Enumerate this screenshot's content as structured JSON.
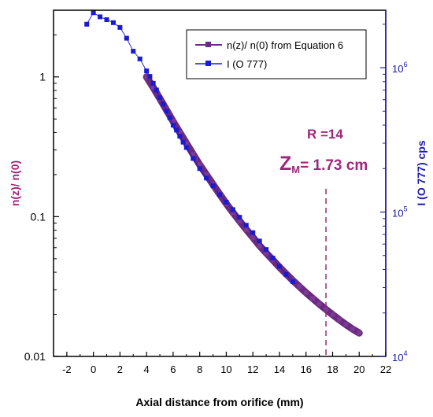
{
  "chart_data": {
    "type": "line",
    "xlabel": "Axial distance from orifice (mm)",
    "ylabel_left": "n(z)/ n(0)",
    "ylabel_right": "I (O 777)  cps",
    "xlim": [
      -3,
      22
    ],
    "ylim_left": [
      0.01,
      3
    ],
    "ylim_right": [
      10000,
      2500000
    ],
    "yscale": "log",
    "x_ticks": [
      -2,
      0,
      2,
      4,
      6,
      8,
      10,
      12,
      14,
      16,
      18,
      20,
      22
    ],
    "x_tick_labels": [
      "-2",
      "0",
      "2",
      "4",
      "6",
      "8",
      "10",
      "12",
      "14",
      "16",
      "18",
      "20",
      "22"
    ],
    "y_left_ticks": [
      0.01,
      0.1,
      1
    ],
    "y_left_tick_labels": [
      "0.01",
      "0.1",
      "1"
    ],
    "y_right_ticks": [
      10000,
      100000,
      1000000
    ],
    "y_right_tick_labels": [
      {
        "base": "10",
        "exp": "4"
      },
      {
        "base": "10",
        "exp": "5"
      },
      {
        "base": "10",
        "exp": "6"
      }
    ],
    "legend_position": "top-right",
    "series": [
      {
        "name": "n(z)/ n(0) from Equation 6",
        "color": "#6a2a80",
        "axis": "left",
        "x": [
          4.0,
          4.5,
          5.0,
          5.5,
          6.0,
          6.5,
          7.0,
          7.5,
          8.0,
          8.5,
          9.0,
          9.5,
          10.0,
          10.5,
          11.0,
          11.5,
          12.0,
          12.5,
          13.0,
          13.5,
          14.0,
          14.5,
          15.0,
          15.5,
          16.0,
          16.5,
          17.0,
          17.5,
          18.0,
          18.5,
          19.0,
          19.5,
          20.0
        ],
        "y": [
          1.0,
          0.84,
          0.7,
          0.58,
          0.48,
          0.4,
          0.335,
          0.28,
          0.235,
          0.2,
          0.17,
          0.145,
          0.124,
          0.107,
          0.093,
          0.081,
          0.071,
          0.062,
          0.055,
          0.049,
          0.0435,
          0.039,
          0.035,
          0.0316,
          0.0286,
          0.026,
          0.0237,
          0.0217,
          0.0199,
          0.0183,
          0.0169,
          0.0157,
          0.0147
        ]
      },
      {
        "name": "I (O 777)",
        "color": "#1a1ad0",
        "axis": "right",
        "x": [
          -0.5,
          0.0,
          0.5,
          1.0,
          1.5,
          2.0,
          2.5,
          3.0,
          3.5,
          4.0,
          4.25,
          4.5,
          4.75,
          5.0,
          5.25,
          5.5,
          5.75,
          6.0,
          6.25,
          6.5,
          6.75,
          7.0,
          7.5,
          8.0,
          8.5,
          9.0,
          9.5,
          10.0,
          10.5,
          11.0,
          11.5,
          12.0,
          12.5,
          13.0,
          13.5,
          14.0,
          14.5,
          15.0
        ],
        "y": [
          2000000,
          2400000,
          2250000,
          2150000,
          2050000,
          1900000,
          1600000,
          1300000,
          1150000,
          950000,
          870000,
          780000,
          700000,
          620000,
          560000,
          500000,
          450000,
          400000,
          370000,
          335000,
          305000,
          280000,
          235000,
          200000,
          172000,
          152000,
          132000,
          117000,
          104000,
          92000,
          81000,
          72000,
          63000,
          55000,
          48000,
          42000,
          37000,
          33000
        ]
      }
    ],
    "annotations": {
      "r_label": "R =14",
      "zm_main": "Z",
      "zm_sub": "M",
      "zm_value": "= 1.73 cm",
      "vline_x": 17.5
    }
  }
}
